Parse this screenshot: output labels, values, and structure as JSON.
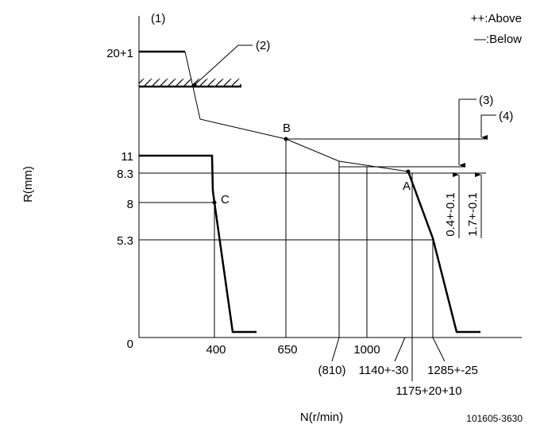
{
  "header": {
    "figure_label": "(1)",
    "legend_above": "++:Above",
    "legend_below": "—:Below"
  },
  "y_axis": {
    "title": "R(mm)",
    "labels": [
      "20+1",
      "11",
      "8.3",
      "8",
      "5.3",
      "0"
    ]
  },
  "x_axis": {
    "title": "N(r/min)",
    "labels": [
      "400",
      "650",
      "1000",
      "(810)",
      "1140+-30",
      "1285+-25",
      "1175+20+10"
    ]
  },
  "callouts": {
    "c2": "(2)",
    "c3": "(3)",
    "c4": "(4)",
    "dim3": "0.4+-0.1",
    "dim4": "1.7+-0.1"
  },
  "points": {
    "a": "A",
    "b": "B",
    "c": "C"
  },
  "footer": {
    "code": "101605-3630"
  }
}
